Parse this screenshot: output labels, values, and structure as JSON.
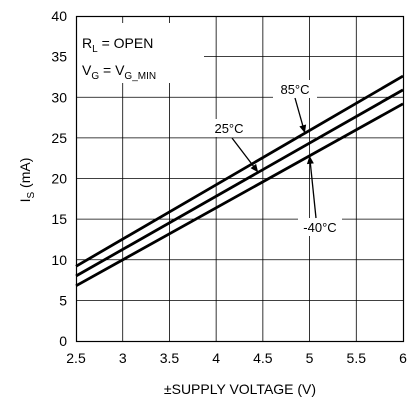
{
  "chart_data": {
    "type": "line",
    "title": "",
    "xlabel": "±SUPPLY VOLTAGE (V)",
    "ylabel": {
      "main": "I",
      "sub": "S",
      "unit": " (mA)"
    },
    "xlim": [
      2.5,
      6
    ],
    "ylim": [
      0,
      40
    ],
    "x_ticks": [
      "2.5",
      "3",
      "3.5",
      "4",
      "4.5",
      "5",
      "5.5",
      "6"
    ],
    "y_ticks": [
      "0",
      "5",
      "10",
      "15",
      "20",
      "25",
      "30",
      "35",
      "40"
    ],
    "grid": true,
    "conditions": [
      {
        "main": "R",
        "sub": "L",
        "rest": " = OPEN"
      },
      {
        "main": "V",
        "sub": "G",
        "rest": " = V",
        "sub2": "G_MIN"
      }
    ],
    "series": [
      {
        "name": "85°C",
        "x": [
          2.5,
          6
        ],
        "y": [
          9.2,
          32.6
        ]
      },
      {
        "name": "25°C",
        "x": [
          2.5,
          6
        ],
        "y": [
          8.0,
          30.9
        ]
      },
      {
        "name": "-40°C",
        "x": [
          2.5,
          6
        ],
        "y": [
          6.8,
          29.2
        ]
      }
    ]
  }
}
